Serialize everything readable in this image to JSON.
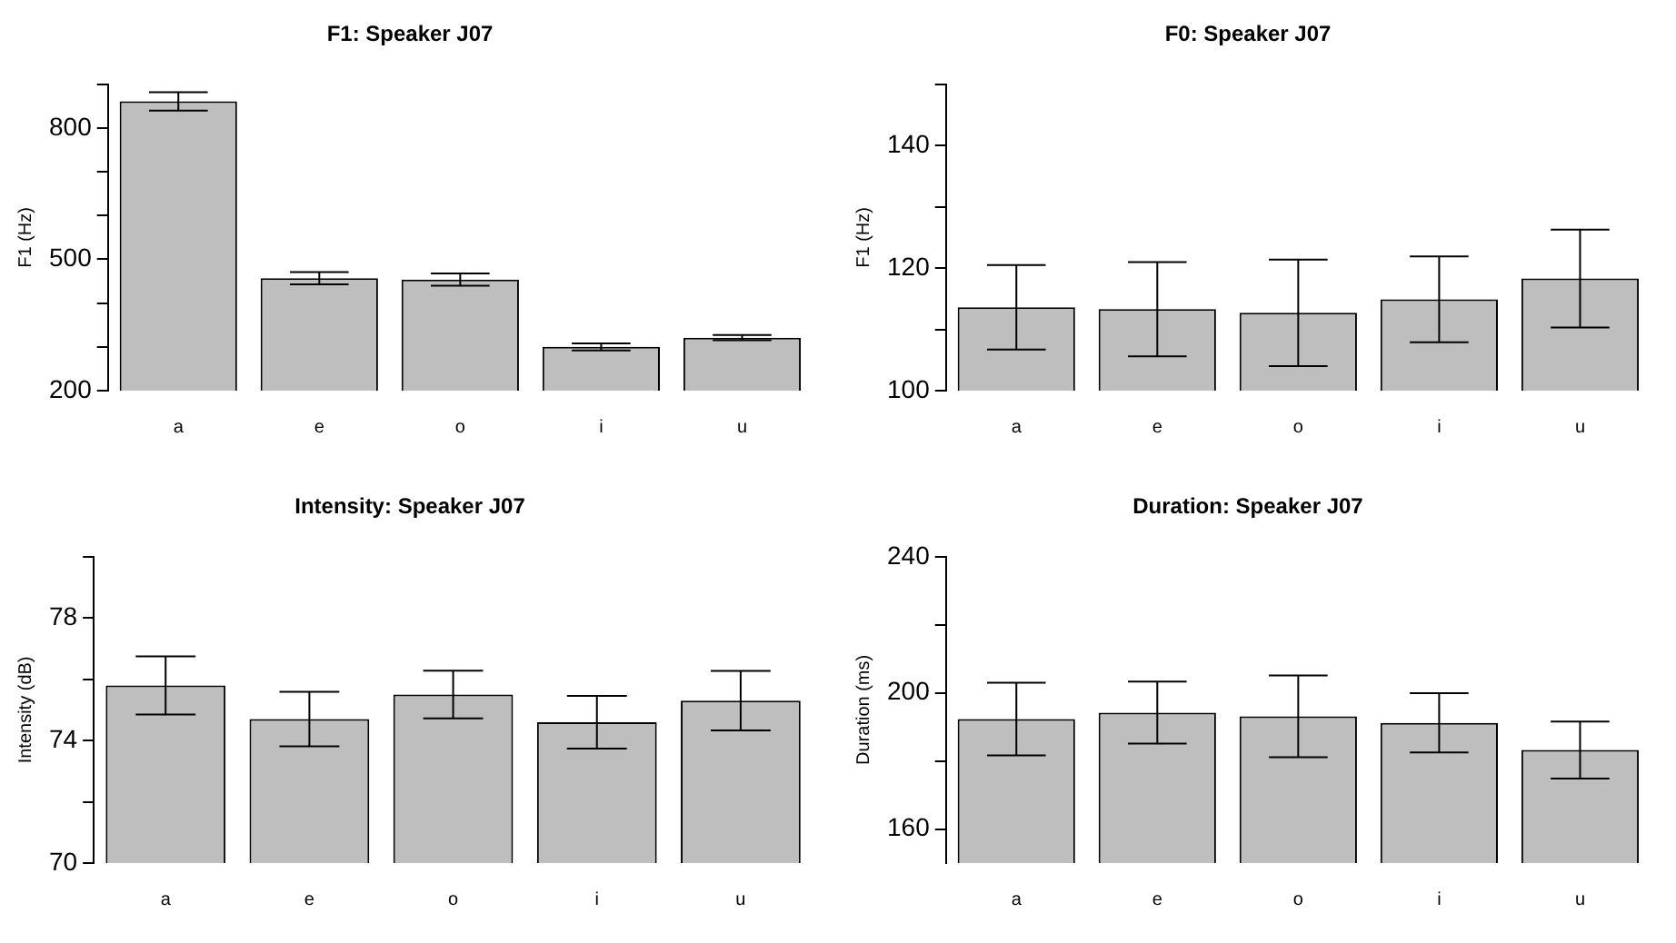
{
  "chart_data": [
    {
      "type": "bar",
      "title": "F1: Speaker J07",
      "ylabel": "F1 (Hz)",
      "categories": [
        "a",
        "e",
        "o",
        "i",
        "u"
      ],
      "color": "#bebebe",
      "values": [
        861,
        457,
        454,
        300,
        321
      ],
      "errors": [
        21,
        14,
        14,
        8,
        6
      ],
      "ylim": [
        200,
        900
      ],
      "yticks": [
        200,
        {
          "value": 300,
          "label": null
        },
        {
          "value": 400,
          "label": null
        },
        500,
        {
          "value": 600,
          "label": null
        },
        {
          "value": 700,
          "label": null
        },
        800,
        {
          "value": 900,
          "label": null
        }
      ],
      "grid": false
    },
    {
      "type": "bar",
      "title": "F0: Speaker J07",
      "ylabel": "F1 (Hz)",
      "categories": [
        "a",
        "e",
        "o",
        "i",
        "u"
      ],
      "color": "#bebebe",
      "values": [
        113.6,
        113.3,
        112.7,
        114.9,
        118.3
      ],
      "errors": [
        6.9,
        7.7,
        8.7,
        7.0,
        8.0
      ],
      "ylim": [
        100,
        150
      ],
      "yticks": [
        100,
        {
          "value": 110,
          "label": null
        },
        120,
        {
          "value": 130,
          "label": null
        },
        140,
        {
          "value": 150,
          "label": null
        }
      ],
      "grid": false
    },
    {
      "type": "bar",
      "title": "Intensity: Speaker J07",
      "ylabel": "Intensity (dB)",
      "categories": [
        "a",
        "e",
        "o",
        "i",
        "u"
      ],
      "color": "#bebebe",
      "values": [
        75.8,
        74.7,
        75.5,
        74.6,
        75.3
      ],
      "errors": [
        0.95,
        0.89,
        0.78,
        0.86,
        0.97
      ],
      "ylim": [
        70,
        80
      ],
      "yticks": [
        70,
        {
          "value": 72,
          "label": null
        },
        74,
        {
          "value": 76,
          "label": null
        },
        78,
        {
          "value": 80,
          "label": null
        }
      ],
      "grid": false
    },
    {
      "type": "bar",
      "title": "Duration: Speaker J07",
      "ylabel": "Duration (ms)",
      "categories": [
        "a",
        "e",
        "o",
        "i",
        "u"
      ],
      "color": "#bebebe",
      "values": [
        192.3,
        194.2,
        193.1,
        191.2,
        183.2
      ],
      "errors": [
        10.7,
        9.1,
        12,
        8.7,
        8.4
      ],
      "ylim": [
        150,
        240
      ],
      "yticks": [
        160,
        {
          "value": 180,
          "label": null
        },
        200,
        {
          "value": 220,
          "label": null
        },
        240
      ],
      "grid": false
    }
  ]
}
